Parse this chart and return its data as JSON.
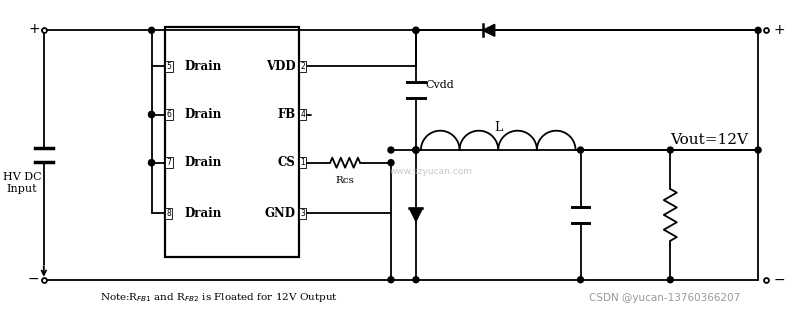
{
  "bg_color": "#ffffff",
  "line_color": "#000000",
  "lw": 1.3,
  "watermark": "www.szyucan.com",
  "csdn": "CSDN @yucan-13760366207",
  "vout_label": "Vout=12V",
  "note": "Note:R$_{FB1}$ and R$_{FB2}$ is Floated for 12V Output",
  "hv_label": "HV DC\nInput",
  "pin_labels_left": [
    "5",
    "6",
    "7",
    "8"
  ],
  "pin_labels_right": [
    "VDD",
    "FB",
    "CS",
    "GND"
  ],
  "pin_nums_right": [
    "2",
    "4",
    "1",
    "3"
  ],
  "drain_label": "Drain"
}
